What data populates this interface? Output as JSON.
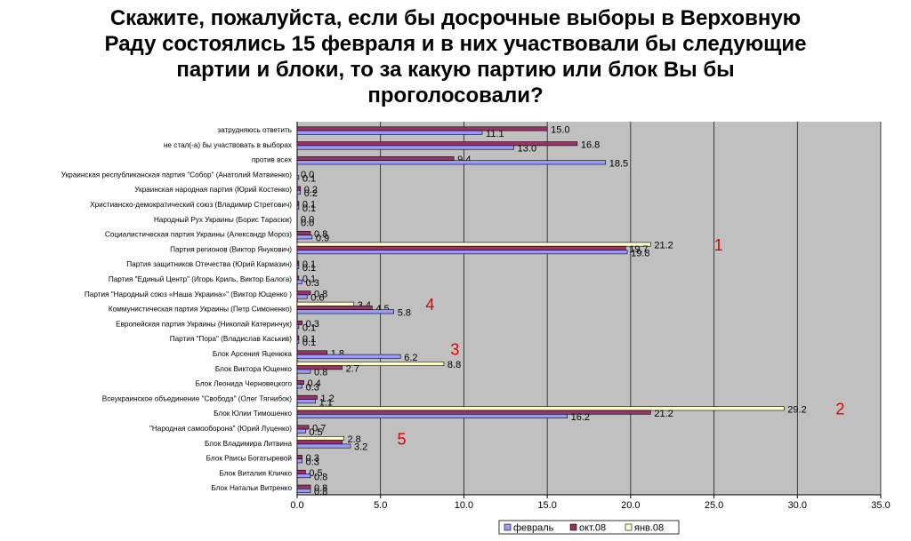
{
  "title_lines": [
    "Скажите, пожалуйста, если бы досрочные выборы в Верховную",
    "Раду состоялись 15 февраля и в них участвовали бы следующие",
    "партии и блоки, то за какую партию или блок Вы бы",
    "проголосовали?"
  ],
  "colors": {
    "plot_bg": "#c0c0c0",
    "grid": "#000000"
  },
  "chart_data": {
    "type": "bar",
    "orientation": "horizontal",
    "xlim": [
      0,
      35
    ],
    "xticks": [
      "0.0",
      "5.0",
      "10.0",
      "15.0",
      "20.0",
      "25.0",
      "30.0",
      "35.0"
    ],
    "grid": true,
    "legend_position": "bottom",
    "categories": [
      "затрудняюсь ответить",
      "не стал(-а) бы участвовать в выборах",
      "против всех",
      "Украинская республиканская партия \"Собор\" (Анатолий Матвиенко)",
      "Украинская народная партия (Юрий Костенко)",
      "Христианско-демократический союз (Владимир Стретович)",
      "Народный Рух Украины (Борис Тарасюк)",
      "Социалистическая партия Украины (Александр Мороз)",
      "Партия регионов (Виктор Янукович)",
      "Партия защитников Отечества (Юрий Кармазин)",
      "Партия \"Единый Центр\" (Игорь Криль, Виктор Балога)",
      "Партия \"Народный союз «Наша Украина»\" (Виктор Ющенко )",
      "Коммунистическая партия Украины (Петр Симоненко)",
      "Европейская партия Украины (Николай Катеринчук)",
      "Партия \"Пора\" (Владислав Каськив)",
      "Блок Арсения Яценюка",
      "Блок Виктора Ющенко",
      "Блок Леонида Черновецкого",
      "Всеукраинское объединение \"Свобода\" (Олег Тягнибок)",
      "Блок Юлии Тимошенко",
      "\"Народная самооборона\" (Юрий Луценко)",
      "Блок Владимира Литвина",
      "Блок Раисы Богатыревой",
      "Блок Виталия Кличко",
      "Блок Натальи Витренко"
    ],
    "series": [
      {
        "name": "янв.08",
        "color": "#ffffcc",
        "values": [
          null,
          null,
          null,
          null,
          null,
          null,
          null,
          null,
          21.2,
          null,
          null,
          null,
          3.4,
          null,
          null,
          null,
          8.8,
          null,
          null,
          29.2,
          null,
          2.8,
          null,
          null,
          null
        ],
        "labels": [
          "",
          "",
          "",
          "",
          "",
          "",
          "",
          "",
          "21.2",
          "",
          "",
          "",
          "3.4",
          "",
          "",
          "",
          "8.8",
          "",
          "",
          "29.2",
          "",
          "2.8",
          "",
          "",
          ""
        ]
      },
      {
        "name": "окт.08",
        "color": "#993366",
        "values": [
          15.0,
          16.8,
          9.4,
          0.0,
          0.2,
          0.1,
          0.0,
          0.8,
          19.7,
          0.1,
          0.1,
          0.8,
          4.5,
          0.3,
          0.1,
          1.8,
          2.7,
          0.4,
          1.2,
          21.2,
          0.7,
          2.7,
          0.3,
          0.5,
          0.8
        ],
        "labels": [
          "15.0",
          "16.8",
          "9.4",
          "0.0",
          "0.2",
          "0.1",
          "0.0",
          "0.8",
          "19.7",
          "0.1",
          "0.1",
          "0.8",
          "4.5",
          "0.3",
          "0.1",
          "1.8",
          "2.7",
          "0.4",
          "1.2",
          "21.2",
          "0.7",
          "",
          "0.3",
          "0.5",
          "0.8"
        ]
      },
      {
        "name": "февраль",
        "color": "#9999ff",
        "values": [
          11.1,
          13.0,
          18.5,
          0.1,
          0.2,
          0.1,
          0.0,
          0.9,
          19.8,
          0.1,
          0.3,
          0.6,
          5.8,
          0.1,
          0.1,
          6.2,
          0.8,
          0.3,
          1.1,
          16.2,
          0.5,
          3.2,
          0.3,
          0.8,
          0.8
        ],
        "labels": [
          "11.1",
          "13.0",
          "18.5",
          "0.1",
          "0.2",
          "0.1",
          "0.0",
          "0.9",
          "19.8",
          "0.1",
          "0.3",
          "0.6",
          "5.8",
          "0.1",
          "0.1",
          "6.2",
          "0.8",
          "0.3",
          "1.1",
          "16.2",
          "0.5",
          "3.2",
          "0.3",
          "0.8",
          "0.8"
        ]
      }
    ],
    "legend": [
      "февраль",
      "окт.08",
      "янв.08"
    ],
    "annotations": [
      {
        "text": "1",
        "category_index": 8,
        "x": 25.0
      },
      {
        "text": "4",
        "category_index": 12,
        "x": 7.7
      },
      {
        "text": "3",
        "category_index": 15,
        "x": 9.2
      },
      {
        "text": "2",
        "category_index": 19,
        "x": 32.3
      },
      {
        "text": "5",
        "category_index": 21,
        "x": 6.0
      }
    ]
  }
}
